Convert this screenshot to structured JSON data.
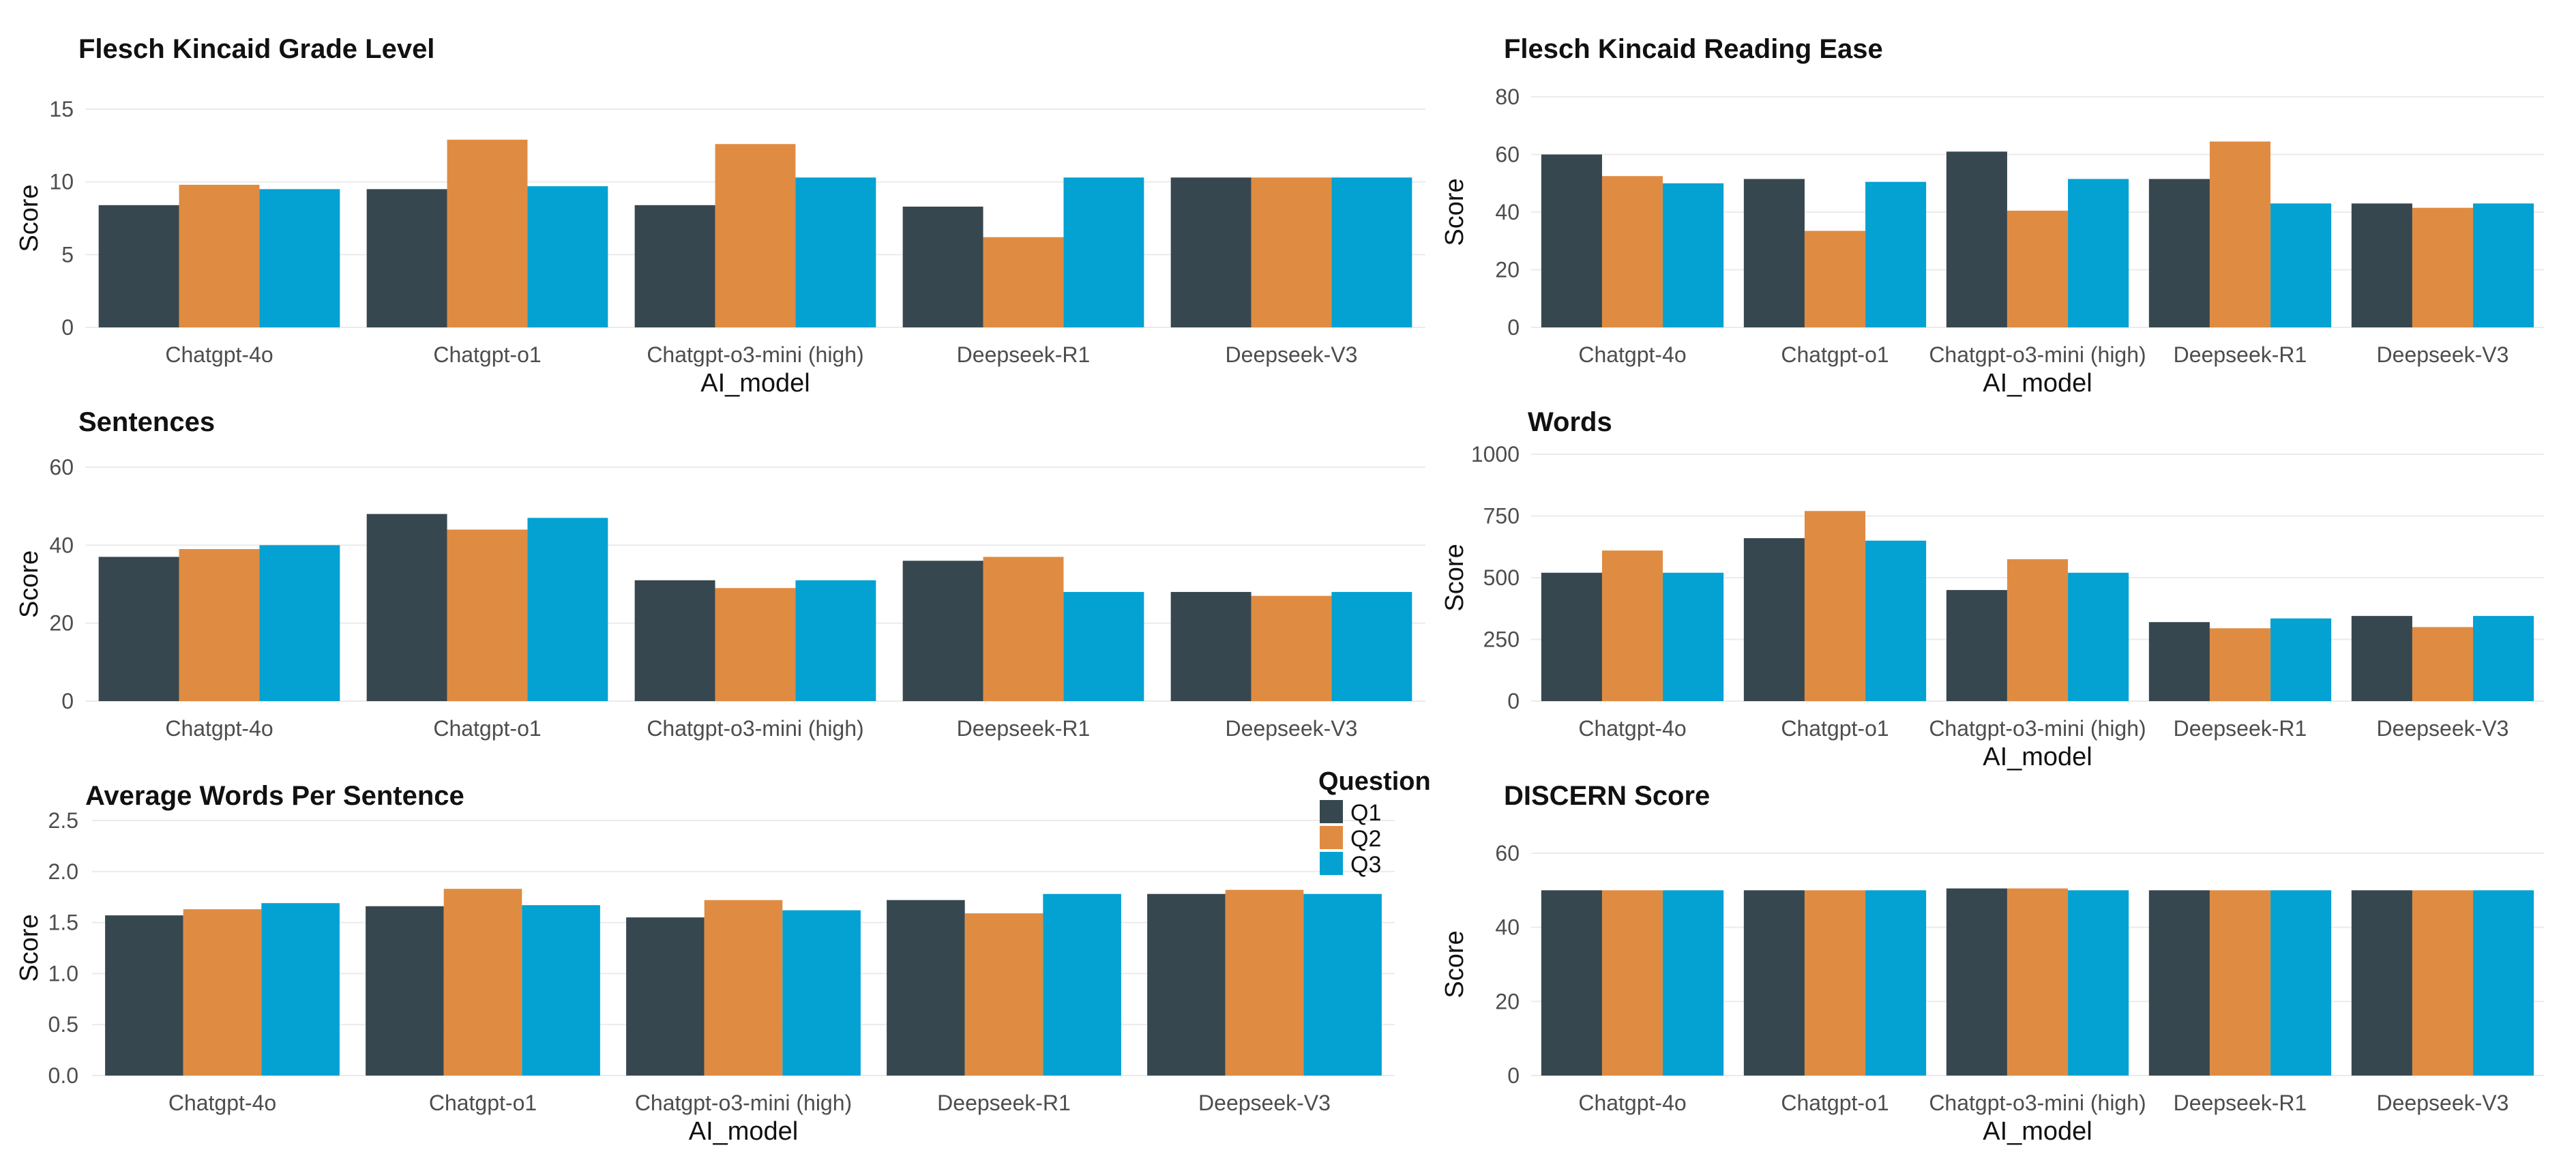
{
  "colors": {
    "Q1": "#37474f",
    "Q2": "#df8c42",
    "Q3": "#04a1d3"
  },
  "legend": {
    "title": "Question",
    "entries": [
      "Q1",
      "Q2",
      "Q3"
    ]
  },
  "chart_data": [
    {
      "type": "bar",
      "title": "Flesch Kincaid Grade Level",
      "xlabel": "AI_model",
      "ylabel": "Score",
      "ylim": [
        0,
        15
      ],
      "yticks": [
        "0",
        "5",
        "10",
        "15"
      ],
      "categories": [
        "Chatgpt-4o",
        "Chatgpt-o1",
        "Chatgpt-o3-mini (high)",
        "Deepseek-R1",
        "Deepseek-V3"
      ],
      "series": [
        {
          "name": "Q1",
          "values": [
            8.4,
            9.5,
            8.4,
            8.3,
            10.3
          ]
        },
        {
          "name": "Q2",
          "values": [
            9.8,
            12.9,
            12.6,
            6.2,
            10.3
          ]
        },
        {
          "name": "Q3",
          "values": [
            9.5,
            9.7,
            10.3,
            10.3,
            10.3
          ]
        }
      ]
    },
    {
      "type": "bar",
      "title": "Flesch Kincaid Reading Ease",
      "xlabel": "AI_model",
      "ylabel": "Score",
      "ylim": [
        0,
        80
      ],
      "yticks": [
        "0",
        "20",
        "40",
        "60",
        "80"
      ],
      "categories": [
        "Chatgpt-4o",
        "Chatgpt-o1",
        "Chatgpt-o3-mini (high)",
        "Deepseek-R1",
        "Deepseek-V3"
      ],
      "series": [
        {
          "name": "Q1",
          "values": [
            60,
            51.5,
            61,
            51.5,
            43
          ]
        },
        {
          "name": "Q2",
          "values": [
            52.5,
            33.5,
            40.5,
            64.5,
            41.5
          ]
        },
        {
          "name": "Q3",
          "values": [
            50,
            50.5,
            51.5,
            43,
            43
          ]
        }
      ]
    },
    {
      "type": "bar",
      "title": "Sentences",
      "xlabel": "",
      "ylabel": "Score",
      "ylim": [
        0,
        60
      ],
      "yticks": [
        "0",
        "20",
        "40",
        "60"
      ],
      "categories": [
        "Chatgpt-4o",
        "Chatgpt-o1",
        "Chatgpt-o3-mini (high)",
        "Deepseek-R1",
        "Deepseek-V3"
      ],
      "series": [
        {
          "name": "Q1",
          "values": [
            37,
            48,
            31,
            36,
            28
          ]
        },
        {
          "name": "Q2",
          "values": [
            39,
            44,
            29,
            37,
            27
          ]
        },
        {
          "name": "Q3",
          "values": [
            40,
            47,
            31,
            28,
            28
          ]
        }
      ]
    },
    {
      "type": "bar",
      "title": "Words",
      "xlabel": "AI_model",
      "ylabel": "Score",
      "ylim": [
        0,
        1000
      ],
      "yticks": [
        "0",
        "250",
        "500",
        "750",
        "1000"
      ],
      "categories": [
        "Chatgpt-4o",
        "Chatgpt-o1",
        "Chatgpt-o3-mini (high)",
        "Deepseek-R1",
        "Deepseek-V3"
      ],
      "series": [
        {
          "name": "Q1",
          "values": [
            520,
            660,
            450,
            320,
            345
          ]
        },
        {
          "name": "Q2",
          "values": [
            610,
            770,
            575,
            295,
            300
          ]
        },
        {
          "name": "Q3",
          "values": [
            520,
            650,
            520,
            335,
            345
          ]
        }
      ]
    },
    {
      "type": "bar",
      "title": "Average Words Per Sentence",
      "xlabel": "AI_model",
      "ylabel": "Score",
      "ylim": [
        0,
        2.5
      ],
      "yticks": [
        "0.0",
        "0.5",
        "1.0",
        "1.5",
        "2.0",
        "2.5"
      ],
      "categories": [
        "Chatgpt-4o",
        "Chatgpt-o1",
        "Chatgpt-o3-mini (high)",
        "Deepseek-R1",
        "Deepseek-V3"
      ],
      "series": [
        {
          "name": "Q1",
          "values": [
            1.57,
            1.66,
            1.55,
            1.72,
            1.78
          ]
        },
        {
          "name": "Q2",
          "values": [
            1.63,
            1.83,
            1.72,
            1.59,
            1.82
          ]
        },
        {
          "name": "Q3",
          "values": [
            1.69,
            1.67,
            1.62,
            1.78,
            1.78
          ]
        }
      ]
    },
    {
      "type": "bar",
      "title": "DISCERN Score",
      "xlabel": "AI_model",
      "ylabel": "Score",
      "ylim": [
        0,
        60
      ],
      "yticks": [
        "0",
        "20",
        "40",
        "60"
      ],
      "categories": [
        "Chatgpt-4o",
        "Chatgpt-o1",
        "Chatgpt-o3-mini (high)",
        "Deepseek-R1",
        "Deepseek-V3"
      ],
      "series": [
        {
          "name": "Q1",
          "values": [
            50,
            50,
            50.5,
            50,
            50
          ]
        },
        {
          "name": "Q2",
          "values": [
            50,
            50,
            50.5,
            50,
            50
          ]
        },
        {
          "name": "Q3",
          "values": [
            50,
            50,
            50,
            50,
            50
          ]
        }
      ]
    }
  ]
}
